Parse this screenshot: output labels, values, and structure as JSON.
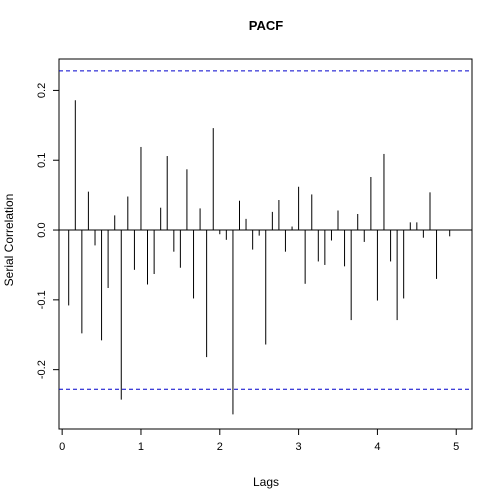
{
  "chart_data": {
    "type": "bar",
    "title": "PACF",
    "xlabel": "Lags",
    "ylabel": "Serial Correlation",
    "xlim": [
      -0.04,
      5.2
    ],
    "ylim": [
      -0.285,
      0.245
    ],
    "xticks": [
      0,
      1,
      2,
      3,
      4,
      5
    ],
    "xtick_labels": [
      "0",
      "1",
      "2",
      "3",
      "4",
      "5"
    ],
    "yticks": [
      -0.2,
      -0.1,
      0.0,
      0.1,
      0.2
    ],
    "ytick_labels": [
      "-0.2",
      "-0.1",
      "0.0",
      "0.1",
      "0.2"
    ],
    "confidence_bound": 0.228,
    "bound_color": "#0000cc",
    "bar_color": "#000000",
    "grid": false,
    "legend": "none",
    "lags": [
      0.083,
      0.167,
      0.25,
      0.333,
      0.417,
      0.5,
      0.583,
      0.667,
      0.75,
      0.833,
      0.917,
      1.0,
      1.083,
      1.167,
      1.25,
      1.333,
      1.417,
      1.5,
      1.583,
      1.667,
      1.75,
      1.833,
      1.917,
      2.0,
      2.083,
      2.167,
      2.25,
      2.333,
      2.417,
      2.5,
      2.583,
      2.667,
      2.75,
      2.833,
      2.917,
      3.0,
      3.083,
      3.167,
      3.25,
      3.333,
      3.417,
      3.5,
      3.583,
      3.667,
      3.75,
      3.833,
      3.917,
      4.0,
      4.083,
      4.167,
      4.25,
      4.333,
      4.417,
      4.5,
      4.583,
      4.667,
      4.75,
      4.833,
      4.917
    ],
    "values": [
      -0.108,
      0.186,
      -0.148,
      0.055,
      -0.022,
      -0.158,
      -0.083,
      0.021,
      -0.243,
      0.048,
      -0.057,
      0.119,
      -0.078,
      -0.063,
      0.032,
      0.106,
      -0.031,
      -0.054,
      0.087,
      -0.098,
      0.031,
      -0.182,
      0.146,
      -0.006,
      -0.014,
      -0.264,
      0.042,
      0.016,
      -0.028,
      -0.008,
      -0.164,
      0.026,
      0.043,
      -0.031,
      0.005,
      0.062,
      -0.077,
      0.051,
      -0.045,
      -0.05,
      -0.015,
      0.028,
      -0.052,
      -0.129,
      0.023,
      -0.017,
      0.076,
      -0.101,
      0.109,
      -0.045,
      -0.129,
      -0.098,
      0.011,
      0.011,
      -0.011,
      0.054,
      -0.07,
      0.0,
      -0.009
    ]
  }
}
